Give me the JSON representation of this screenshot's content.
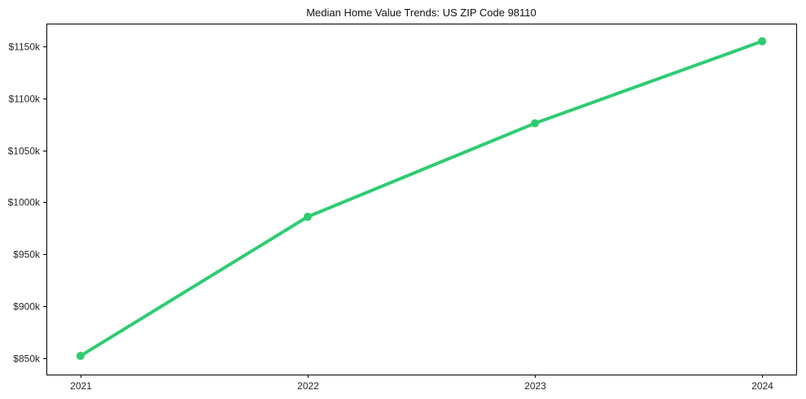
{
  "page": {
    "background": "#ffffff"
  },
  "chart_data": {
    "type": "line",
    "title": "Median Home Value Trends: US ZIP Code 98110",
    "x": [
      2021,
      2022,
      2023,
      2024
    ],
    "series": [
      {
        "name": "median_home_value",
        "values": [
          852,
          986,
          1076,
          1155
        ],
        "color": "#2ecc71",
        "marker": "circle",
        "line_width": 4,
        "marker_radius": 5
      }
    ],
    "x_tick_labels": [
      "2021",
      "2022",
      "2023",
      "2024"
    ],
    "y_ticks": [
      850,
      900,
      950,
      1000,
      1050,
      1100,
      1150
    ],
    "y_tick_labels": [
      "$850k",
      "$900k",
      "$950k",
      "$1000k",
      "$1050k",
      "$1100k",
      "$1150k"
    ],
    "xlim": [
      2020.85,
      2024.15
    ],
    "ylim": [
      834,
      1172
    ],
    "grid": false,
    "legend": "none",
    "xlabel": "",
    "ylabel": "",
    "axis_color": "#000000",
    "tick_label_color": "#262626"
  }
}
